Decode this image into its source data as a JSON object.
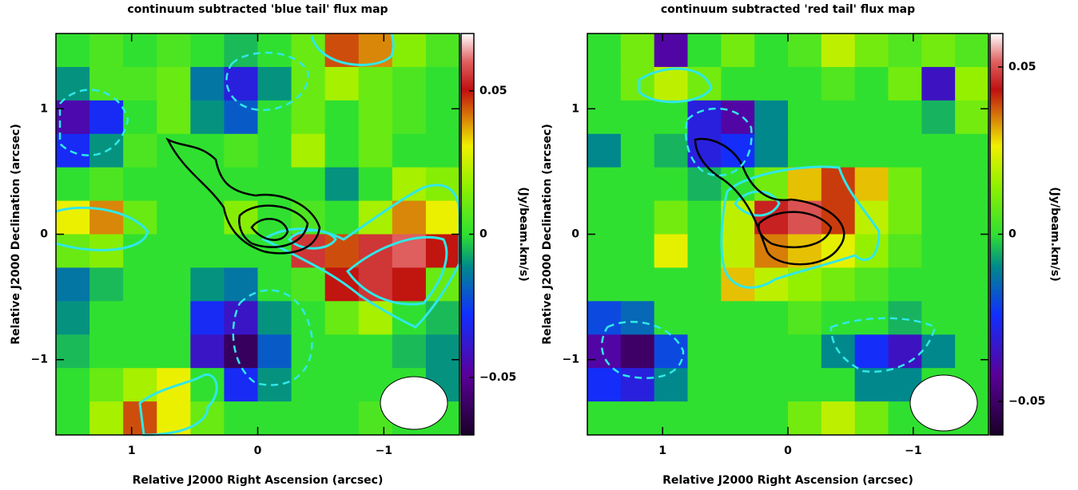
{
  "chart_data": [
    {
      "type": "heatmap",
      "title": "continuum subtracted 'blue tail' flux map",
      "xlabel": "Relative J2000 Right Ascension (arcsec)",
      "ylabel": "Relative J2000 Declination (arcsec)",
      "colorbar_label": "(Jy/beam.km/s)",
      "xlim": [
        1.6,
        -1.6
      ],
      "ylim": [
        -1.6,
        1.6
      ],
      "xticks": [
        1,
        0,
        {
          "value": -1,
          "label": "−1"
        }
      ],
      "yticks": [
        {
          "value": -1,
          "label": "−1"
        },
        0,
        1
      ],
      "clim": [
        -0.07,
        0.07
      ],
      "cticks": [
        {
          "value": -0.05,
          "label": "−0.05"
        },
        0,
        0.05
      ],
      "colormap": [
        [
          0,
          "#1a0028"
        ],
        [
          0.15,
          "#5a009a"
        ],
        [
          0.3,
          "#1030ff"
        ],
        [
          0.42,
          "#008a8a"
        ],
        [
          0.5,
          "#30e030"
        ],
        [
          0.62,
          "#90f000"
        ],
        [
          0.72,
          "#f0f000"
        ],
        [
          0.86,
          "#c01010"
        ],
        [
          0.93,
          "#e06060"
        ],
        [
          1,
          "#ffffff"
        ]
      ],
      "values": [
        [
          0,
          0.005,
          0,
          0.005,
          0,
          -0.005,
          0,
          0.01,
          0.045,
          0.04,
          0.015,
          0.005
        ],
        [
          -0.01,
          0.005,
          0.005,
          0.01,
          -0.015,
          -0.035,
          -0.01,
          0.01,
          0.02,
          0.01,
          0.005,
          0
        ],
        [
          -0.045,
          -0.03,
          0,
          0.01,
          -0.01,
          -0.02,
          0,
          0.01,
          0,
          0.01,
          0.005,
          0
        ],
        [
          -0.03,
          -0.01,
          0.005,
          0,
          0,
          0.005,
          0,
          0.02,
          0,
          0.01,
          0,
          0
        ],
        [
          0,
          0.005,
          0,
          0,
          0,
          0,
          0,
          0,
          -0.01,
          0,
          0.02,
          0.015
        ],
        [
          0.03,
          0.04,
          0.01,
          0,
          0,
          0.015,
          0,
          0.005,
          0,
          0.02,
          0.04,
          0.03
        ],
        [
          0.01,
          0.015,
          0,
          0,
          0,
          0,
          0,
          0.055,
          0.045,
          0.055,
          0.06,
          0.05
        ],
        [
          -0.015,
          -0.005,
          0,
          0,
          -0.01,
          -0.015,
          0,
          0.005,
          0.05,
          0.055,
          0.05,
          0.01
        ],
        [
          -0.01,
          0,
          0,
          0,
          -0.03,
          -0.04,
          -0.01,
          0,
          0.01,
          0.02,
          0,
          -0.005
        ],
        [
          -0.005,
          0,
          0,
          0,
          -0.04,
          -0.06,
          -0.02,
          0,
          0,
          0,
          -0.005,
          -0.01
        ],
        [
          0,
          0.01,
          0.02,
          0.03,
          0,
          -0.03,
          -0.01,
          0,
          0,
          0,
          0,
          -0.01
        ],
        [
          0,
          0.02,
          0.045,
          0.03,
          0.01,
          0,
          0,
          0,
          0,
          0.005,
          0,
          0
        ]
      ]
    },
    {
      "type": "heatmap",
      "title": "continuum subtracted 'red tail' flux map",
      "xlabel": "Relative J2000 Right Ascension (arcsec)",
      "ylabel": "Relative J2000 Declination (arcsec)",
      "colorbar_label": "(Jy/beam.km/s)",
      "xlim": [
        1.6,
        -1.6
      ],
      "ylim": [
        -1.6,
        1.6
      ],
      "xticks": [
        1,
        0,
        {
          "value": -1,
          "label": "−1"
        }
      ],
      "yticks": [
        {
          "value": -1,
          "label": "−1"
        },
        0,
        1
      ],
      "clim": [
        -0.06,
        0.06
      ],
      "cticks": [
        {
          "value": -0.05,
          "label": "−0.05"
        },
        0,
        0.05
      ],
      "colormap": [
        [
          0,
          "#1a0028"
        ],
        [
          0.15,
          "#5a009a"
        ],
        [
          0.3,
          "#1030ff"
        ],
        [
          0.42,
          "#008a8a"
        ],
        [
          0.5,
          "#30e030"
        ],
        [
          0.62,
          "#90f000"
        ],
        [
          0.72,
          "#f0f000"
        ],
        [
          0.86,
          "#c01010"
        ],
        [
          0.93,
          "#e06060"
        ],
        [
          1,
          "#ffffff"
        ]
      ],
      "values": [
        [
          0,
          0.01,
          -0.04,
          0,
          0.01,
          0,
          0.005,
          0.02,
          0.01,
          0.005,
          0.01,
          0.005
        ],
        [
          0,
          0.01,
          0.02,
          0.01,
          0,
          0,
          0,
          0.005,
          0,
          0.01,
          -0.035,
          0.015
        ],
        [
          0,
          0,
          0,
          -0.03,
          -0.04,
          -0.01,
          0,
          0,
          0,
          0,
          -0.005,
          0.01
        ],
        [
          -0.01,
          0,
          -0.005,
          -0.03,
          -0.025,
          -0.01,
          0,
          0,
          0,
          0,
          0,
          0
        ],
        [
          0,
          0,
          0,
          -0.005,
          0,
          0.01,
          0.03,
          0.04,
          0.03,
          0.01,
          0,
          0
        ],
        [
          0,
          0,
          0.01,
          0,
          0.02,
          0.045,
          0.05,
          0.04,
          0.02,
          0.01,
          0,
          0
        ],
        [
          0,
          0,
          0.025,
          0,
          0.02,
          0.035,
          0.03,
          0.025,
          0.015,
          0.005,
          0,
          0
        ],
        [
          0,
          0,
          0,
          0,
          0.03,
          0.02,
          0.015,
          0.01,
          0.005,
          0,
          0,
          0
        ],
        [
          -0.02,
          -0.015,
          0,
          0,
          0,
          0,
          0.005,
          0,
          0,
          -0.005,
          0,
          0
        ],
        [
          -0.04,
          -0.05,
          -0.02,
          0,
          0,
          0,
          0,
          -0.01,
          -0.025,
          -0.035,
          -0.01,
          0
        ],
        [
          -0.025,
          -0.03,
          -0.01,
          0,
          0,
          0,
          0,
          0,
          -0.01,
          -0.01,
          0,
          0
        ],
        [
          0,
          0,
          0,
          0,
          0,
          0,
          0.01,
          0.02,
          0.01,
          0,
          0,
          0
        ]
      ]
    }
  ]
}
